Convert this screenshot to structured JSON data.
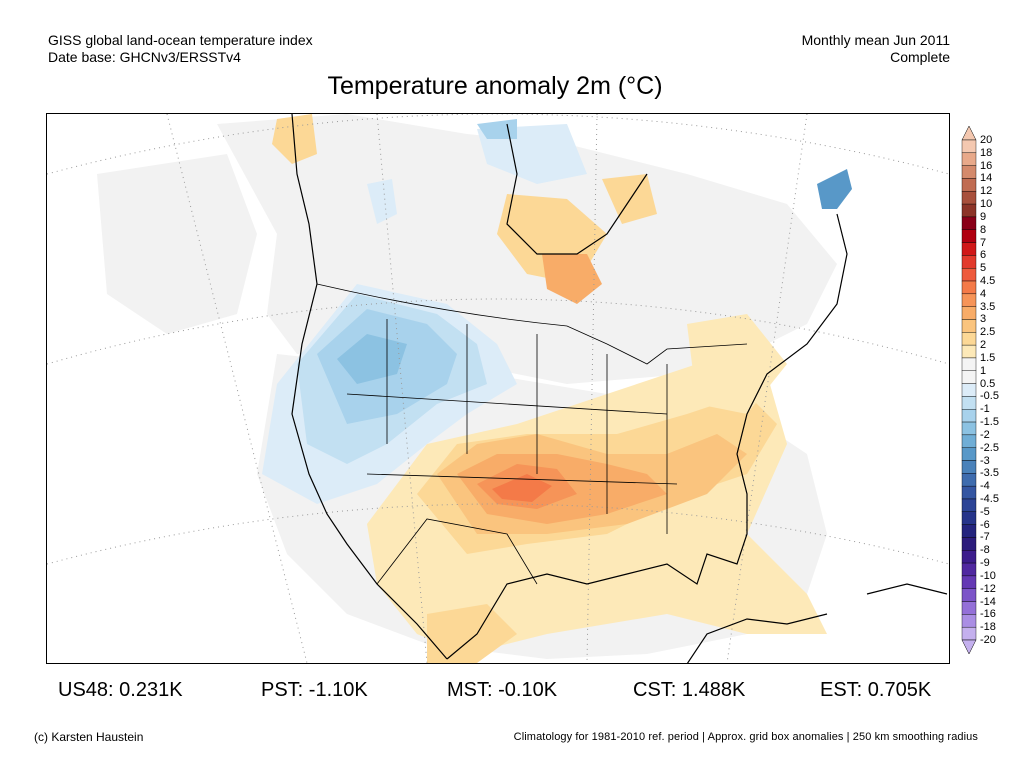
{
  "header": {
    "left_line1": "GISS global land-ocean temperature index",
    "left_line2": "Date base: GHCNv3/ERSSTv4",
    "right_line1": "Monthly mean Jun 2011",
    "right_line2": "Complete"
  },
  "title": "Temperature anomaly 2m (°C)",
  "legend": {
    "labels": [
      "20",
      "18",
      "16",
      "14",
      "12",
      "10",
      "9",
      "8",
      "7",
      "6",
      "5",
      "4.5",
      "4",
      "3.5",
      "3",
      "2.5",
      "2",
      "1.5",
      "1",
      "0.5",
      "-0.5",
      "-1",
      "-1.5",
      "-2",
      "-2.5",
      "-3",
      "-3.5",
      "-4",
      "-4.5",
      "-5",
      "-6",
      "-7",
      "-8",
      "-9",
      "-10",
      "-12",
      "-14",
      "-16",
      "-18",
      "-20"
    ],
    "colors": [
      "#f4c8b0",
      "#e8a98a",
      "#d48a6c",
      "#c06c52",
      "#a8503c",
      "#8c3428",
      "#8a0018",
      "#b00010",
      "#d01818",
      "#e23a2c",
      "#ee5a3c",
      "#f47a48",
      "#f69458",
      "#f8ac68",
      "#fac47e",
      "#fcd896",
      "#fde9b8",
      "#f4f4f4",
      "#f4f4f4",
      "#dcecf8",
      "#c2e0f2",
      "#a8d2ec",
      "#8cc2e2",
      "#70aed6",
      "#5898c8",
      "#4a82ba",
      "#3e6cae",
      "#3456a2",
      "#2c4496",
      "#26348a",
      "#24247e",
      "#2c1c7c",
      "#3c1c8c",
      "#5028a0",
      "#6438b4",
      "#7c54c8",
      "#9470d8",
      "#aa8ee4",
      "#c4b0ee"
    ]
  },
  "stats": [
    {
      "label": "US48: 0.231K"
    },
    {
      "label": "PST: -1.10K"
    },
    {
      "label": "MST: -0.10K"
    },
    {
      "label": "CST: 1.488K"
    },
    {
      "label": "EST: 0.705K"
    }
  ],
  "footer": {
    "left": "(c) Karsten Haustein",
    "right": "Climatology for 1981-2010 ref. period | Approx. grid box anomalies | 250 km smoothing radius"
  }
}
